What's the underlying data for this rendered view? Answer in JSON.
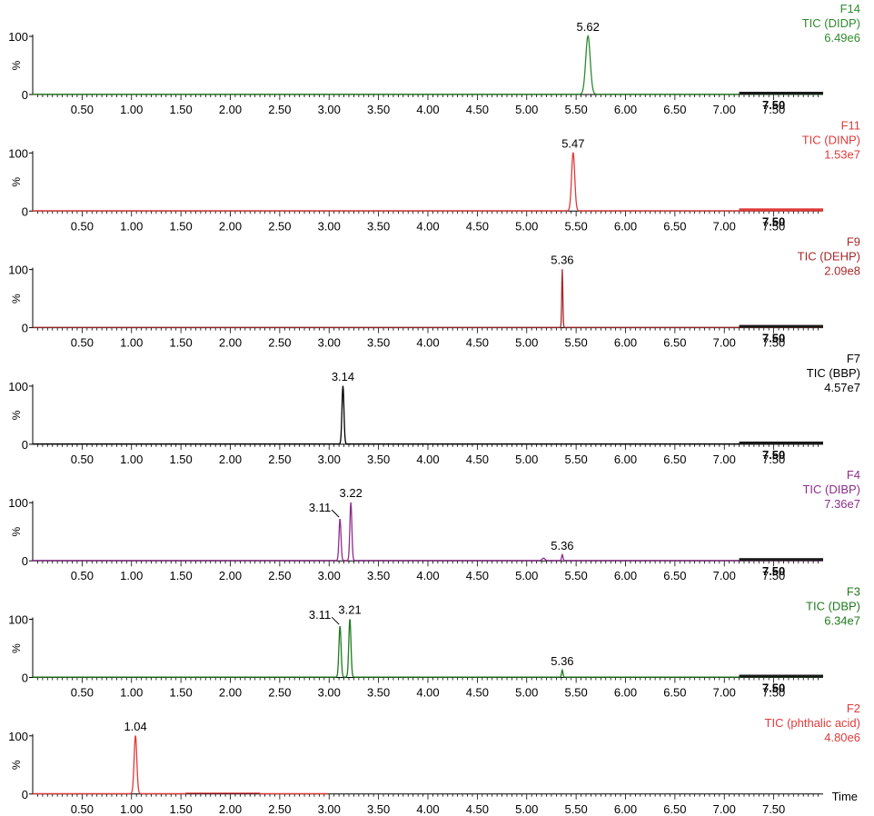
{
  "chart_data": {
    "type": "line",
    "x_axis": {
      "min": 0.0,
      "max": 8.0,
      "major_ticks": [
        "0.50",
        "1.00",
        "1.50",
        "2.00",
        "2.50",
        "3.00",
        "3.50",
        "4.00",
        "4.50",
        "5.00",
        "5.50",
        "6.00",
        "6.50",
        "7.00",
        "7.50"
      ],
      "overlay_label": "7.50",
      "label": "Time"
    },
    "y_axis": {
      "min": 0,
      "max": 100,
      "ticks": [
        "100",
        "0"
      ],
      "label": "%"
    },
    "panels": [
      {
        "function": "F14",
        "compound": "TIC (DIDP)",
        "intensity": "6.49e6",
        "color": "#2e8b2e",
        "peaks": [
          {
            "rt": 5.62,
            "label": "5.62",
            "height": 100,
            "width": 0.05
          }
        ]
      },
      {
        "function": "F11",
        "compound": "TIC (DINP)",
        "intensity": "1.53e7",
        "color": "#e03a3a",
        "peaks": [
          {
            "rt": 5.47,
            "label": "5.47",
            "height": 100,
            "width": 0.035
          }
        ]
      },
      {
        "function": "F9",
        "compound": "TIC (DEHP)",
        "intensity": "2.09e8",
        "color": "#a52a2a",
        "peaks": [
          {
            "rt": 5.36,
            "label": "5.36",
            "height": 100,
            "width": 0.012
          }
        ]
      },
      {
        "function": "F7",
        "compound": "TIC (BBP)",
        "intensity": "4.57e7",
        "color": "#000000",
        "peaks": [
          {
            "rt": 3.14,
            "label": "3.14",
            "height": 100,
            "width": 0.022
          }
        ]
      },
      {
        "function": "F4",
        "compound": "TIC (DIBP)",
        "intensity": "7.36e7",
        "color": "#8b2e8b",
        "peaks": [
          {
            "rt": 3.11,
            "label": "3.11",
            "height": 72,
            "width": 0.022
          },
          {
            "rt": 3.22,
            "label": "3.22",
            "height": 100,
            "width": 0.022
          },
          {
            "rt": 5.17,
            "label": "",
            "height": 4,
            "width": 0.03
          },
          {
            "rt": 5.36,
            "label": "5.36",
            "height": 10,
            "width": 0.015
          }
        ]
      },
      {
        "function": "F3",
        "compound": "TIC (DBP)",
        "intensity": "6.34e7",
        "color": "#1f7a1f",
        "peaks": [
          {
            "rt": 3.11,
            "label": "3.11",
            "height": 88,
            "width": 0.024
          },
          {
            "rt": 3.21,
            "label": "3.21",
            "height": 100,
            "width": 0.024
          },
          {
            "rt": 5.36,
            "label": "5.36",
            "height": 12,
            "width": 0.015
          }
        ]
      },
      {
        "function": "F2",
        "compound": "TIC (phthalic acid)",
        "intensity": "4.80e6",
        "color": "#e03a3a",
        "peaks": [
          {
            "rt": 1.04,
            "label": "1.04",
            "height": 100,
            "width": 0.03
          }
        ]
      }
    ]
  }
}
